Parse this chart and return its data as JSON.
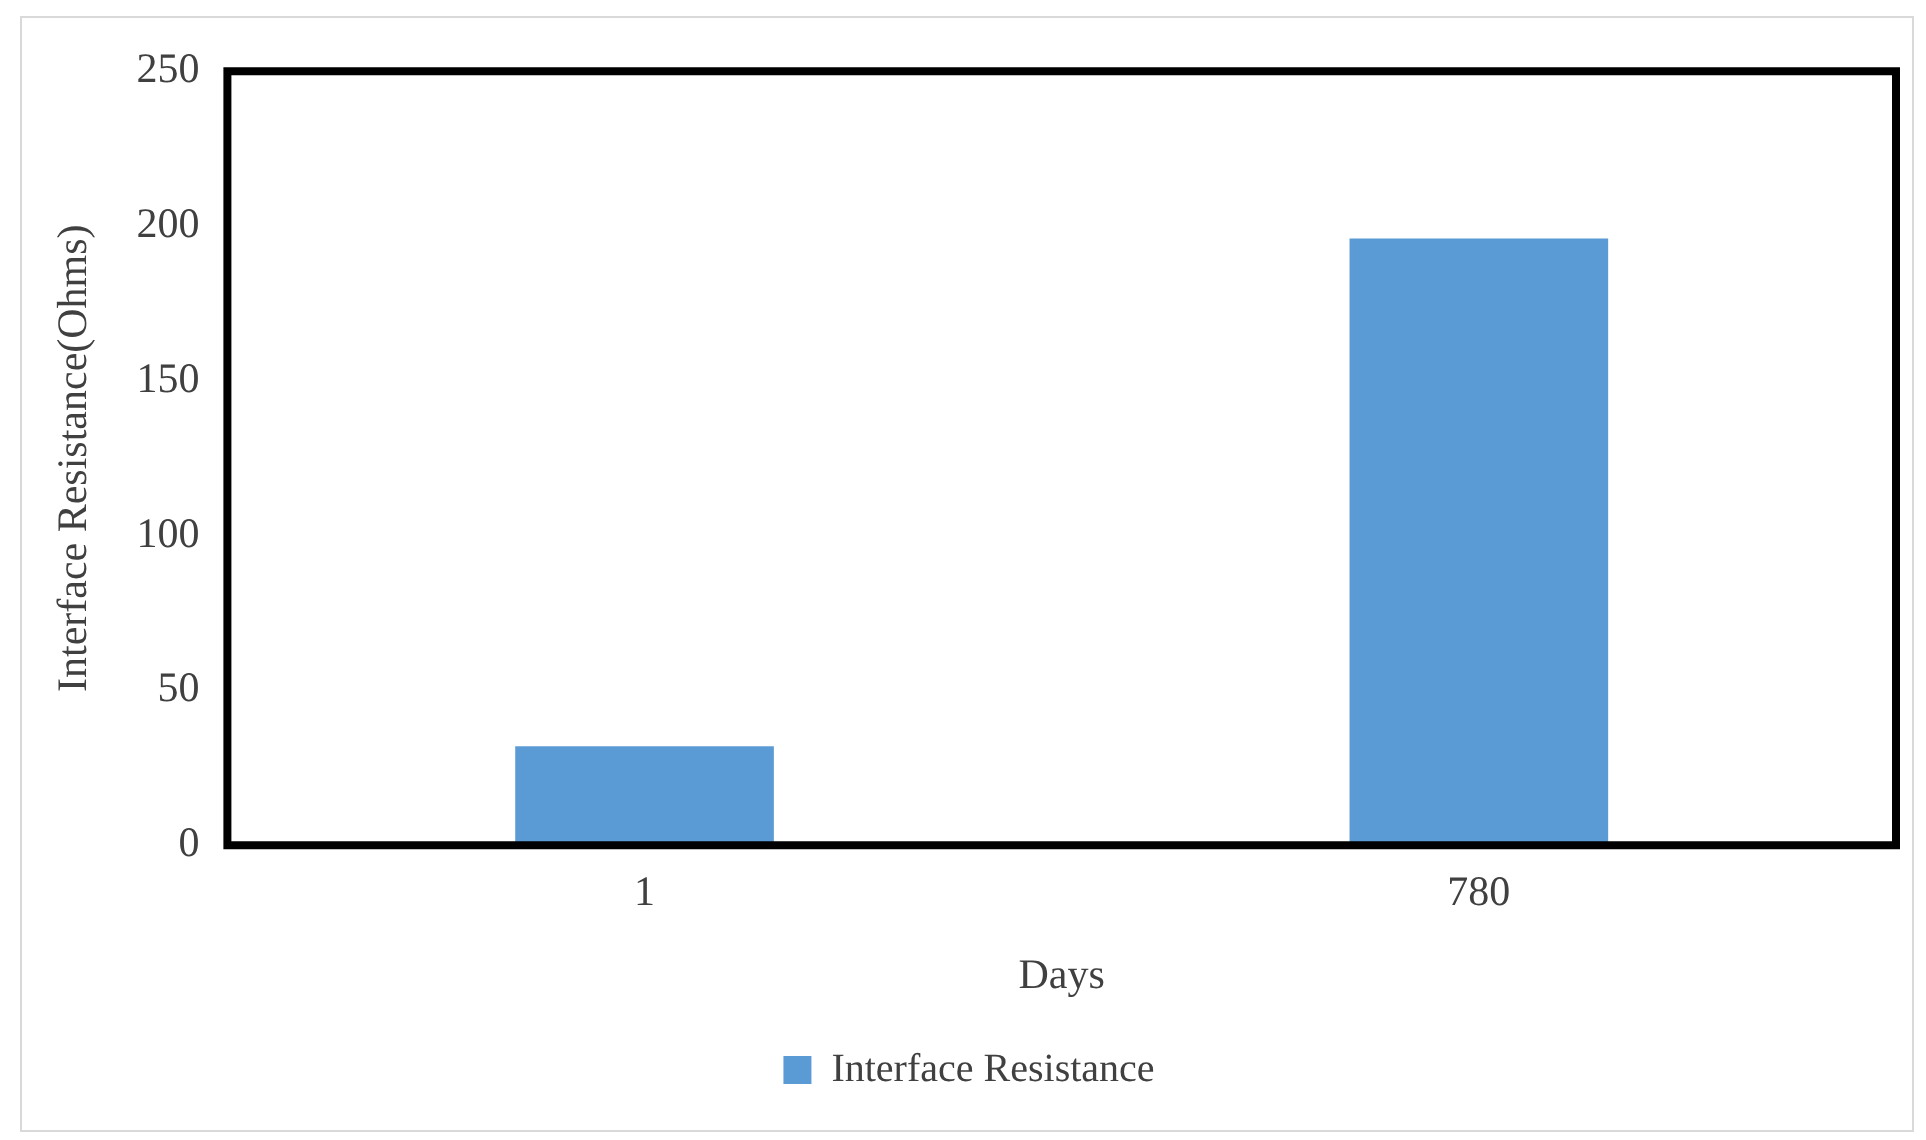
{
  "chart_data": {
    "type": "bar",
    "xlabel": "Days",
    "ylabel": "Interface Resistance(Ohms)",
    "categories": [
      "1",
      "780"
    ],
    "series": [
      {
        "name": "Interface Resistance",
        "color": "#5b9bd5",
        "values": [
          32,
          196
        ]
      }
    ],
    "ylim": [
      0,
      250
    ],
    "yticks": [
      0,
      50,
      100,
      150,
      200,
      250
    ],
    "grid": false,
    "legend": "bottom"
  }
}
